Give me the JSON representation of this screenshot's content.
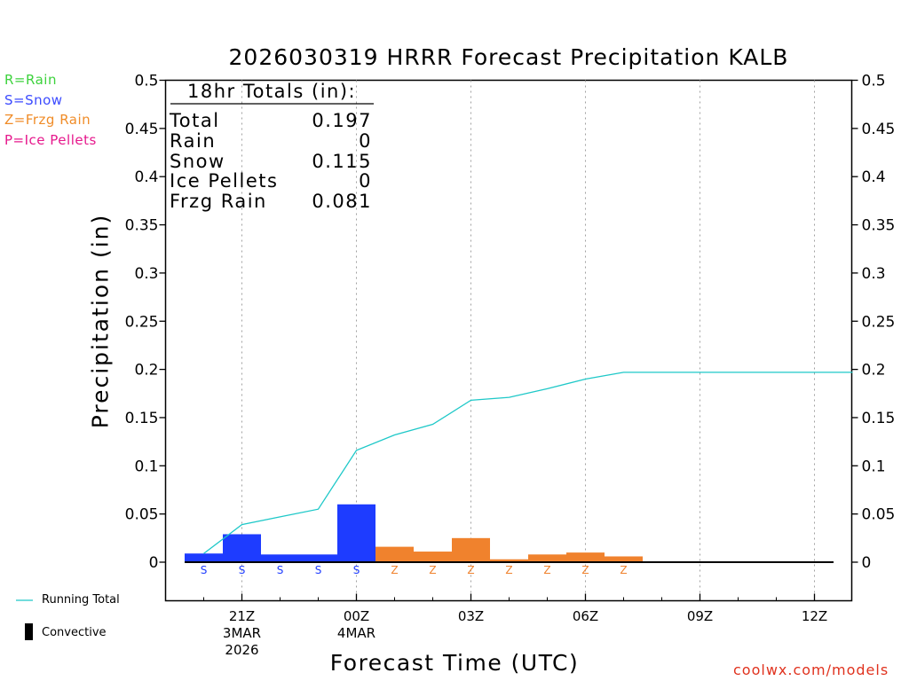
{
  "title": "2026030319 HRRR Forecast Precipitation KALB",
  "precip_key": {
    "rain": "R=Rain",
    "snow": "S=Snow",
    "frzg_rain": "Z=Frzg Rain",
    "ice_pellets": "P=Ice Pellets"
  },
  "legend": {
    "running_total": "Running Total",
    "convective": "Convective"
  },
  "totals_box": {
    "header": "18hr Totals (in):",
    "rows": [
      {
        "label": "Total",
        "value": "0.197"
      },
      {
        "label": "Rain",
        "value": "0"
      },
      {
        "label": "Snow",
        "value": "0.115"
      },
      {
        "label": "Ice Pellets",
        "value": "0"
      },
      {
        "label": "Frzg Rain",
        "value": "0.081"
      }
    ]
  },
  "credit": "coolwx.com/models",
  "colors": {
    "snow": "#1e3cff",
    "frzg_rain": "#f0822d",
    "running_total": "#1ec8c8",
    "rain_key": "#3cd23c",
    "snow_key": "#3c4bff",
    "frzg_key": "#f08c28",
    "pellets_key": "#e6188c",
    "credit": "#e0321e"
  },
  "chart_data": {
    "type": "bar",
    "title": "2026030319 HRRR Forecast Precipitation KALB",
    "xlabel": "Forecast Time (UTC)",
    "ylabel": "Precipitation (in)",
    "ylim": [
      -0.04,
      0.5
    ],
    "y_ticks": [
      0,
      0.05,
      0.1,
      0.15,
      0.2,
      0.25,
      0.3,
      0.35,
      0.4,
      0.45,
      0.5
    ],
    "y_tick_labels": [
      "0",
      "0.05",
      "0.1",
      "0.15",
      "0.2",
      "0.25",
      "0.3",
      "0.35",
      "0.4",
      "0.45",
      "0.5"
    ],
    "xlim_hours": [
      0,
      18
    ],
    "x_ticks": [
      {
        "hour": 2,
        "lines": [
          "21Z",
          "3MAR",
          "2026"
        ]
      },
      {
        "hour": 5,
        "lines": [
          "00Z",
          "4MAR"
        ]
      },
      {
        "hour": 8,
        "lines": [
          "03Z"
        ]
      },
      {
        "hour": 11,
        "lines": [
          "06Z"
        ]
      },
      {
        "hour": 14,
        "lines": [
          "09Z"
        ]
      },
      {
        "hour": 17,
        "lines": [
          "12Z"
        ]
      }
    ],
    "bars": [
      {
        "hour": 1,
        "value": 0.009,
        "type": "snow",
        "label": "S"
      },
      {
        "hour": 2,
        "value": 0.029,
        "type": "snow",
        "label": "S"
      },
      {
        "hour": 3,
        "value": 0.008,
        "type": "snow",
        "label": "S"
      },
      {
        "hour": 4,
        "value": 0.008,
        "type": "snow",
        "label": "S"
      },
      {
        "hour": 5,
        "value": 0.06,
        "type": "snow",
        "label": "S"
      },
      {
        "hour": 6,
        "value": 0.016,
        "type": "frzg_rain",
        "label": "Z"
      },
      {
        "hour": 7,
        "value": 0.011,
        "type": "frzg_rain",
        "label": "Z"
      },
      {
        "hour": 8,
        "value": 0.025,
        "type": "frzg_rain",
        "label": "Z"
      },
      {
        "hour": 9,
        "value": 0.003,
        "type": "frzg_rain",
        "label": "Z"
      },
      {
        "hour": 10,
        "value": 0.008,
        "type": "frzg_rain",
        "label": "Z"
      },
      {
        "hour": 11,
        "value": 0.01,
        "type": "frzg_rain",
        "label": "Z"
      },
      {
        "hour": 12,
        "value": 0.006,
        "type": "frzg_rain",
        "label": "Z"
      }
    ],
    "running_total": {
      "hours": [
        1,
        2,
        3,
        4,
        5,
        6,
        7,
        8,
        9,
        10,
        11,
        12,
        13,
        14,
        15,
        16,
        17,
        18
      ],
      "values": [
        0.009,
        0.039,
        0.047,
        0.055,
        0.116,
        0.132,
        0.143,
        0.168,
        0.171,
        0.18,
        0.19,
        0.197,
        0.197,
        0.197,
        0.197,
        0.197,
        0.197,
        0.197
      ]
    },
    "convective": {
      "hours": [
        1,
        2,
        3,
        4,
        5,
        6,
        7,
        8,
        9,
        10,
        11,
        12,
        13,
        14,
        15,
        16,
        17,
        18
      ],
      "values": [
        0,
        0,
        0,
        0,
        0,
        0,
        0,
        0,
        0,
        0,
        0,
        0,
        0,
        0,
        0,
        0,
        0,
        0
      ]
    }
  }
}
